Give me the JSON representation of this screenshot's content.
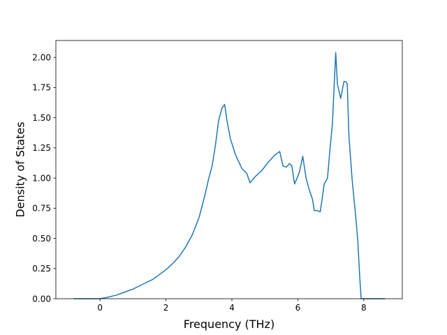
{
  "chart_data": {
    "type": "line",
    "title": "",
    "xlabel": "Frequency (THz)",
    "ylabel": "Density of States",
    "xlim": [
      -1.34,
      9.17
    ],
    "ylim": [
      0.0,
      2.14
    ],
    "xticks": [
      0,
      2,
      4,
      6,
      8
    ],
    "xtick_labels": [
      "0",
      "2",
      "4",
      "6",
      "8"
    ],
    "yticks": [
      0.0,
      0.25,
      0.5,
      0.75,
      1.0,
      1.25,
      1.5,
      1.75,
      2.0
    ],
    "ytick_labels": [
      "0.00",
      "0.25",
      "0.50",
      "0.75",
      "1.00",
      "1.25",
      "1.50",
      "1.75",
      "2.00"
    ],
    "grid": false,
    "line_color": "#1f77b4",
    "series": [
      {
        "x": [
          -0.8,
          -0.3,
          0.0,
          0.2,
          0.5,
          0.8,
          1.0,
          1.3,
          1.6,
          1.8,
          2.0,
          2.2,
          2.4,
          2.6,
          2.8,
          3.0,
          3.1,
          3.2,
          3.3,
          3.4,
          3.5,
          3.6,
          3.7,
          3.78,
          3.85,
          3.95,
          4.1,
          4.3,
          4.45,
          4.55,
          4.7,
          4.9,
          5.1,
          5.3,
          5.45,
          5.55,
          5.65,
          5.75,
          5.82,
          5.9,
          5.98,
          6.05,
          6.15,
          6.25,
          6.35,
          6.45,
          6.5,
          6.6,
          6.68,
          6.75,
          6.8,
          6.9,
          6.98,
          7.05,
          7.1,
          7.15,
          7.2,
          7.3,
          7.4,
          7.45,
          7.5,
          7.55,
          7.65,
          7.75,
          7.82,
          7.87,
          7.92,
          8.1,
          8.4,
          8.65
        ],
        "y": [
          0.0,
          0.0,
          0.0,
          0.01,
          0.03,
          0.06,
          0.08,
          0.12,
          0.16,
          0.2,
          0.24,
          0.29,
          0.35,
          0.43,
          0.53,
          0.67,
          0.77,
          0.88,
          1.0,
          1.1,
          1.27,
          1.48,
          1.58,
          1.61,
          1.48,
          1.33,
          1.2,
          1.08,
          1.04,
          0.96,
          1.01,
          1.06,
          1.13,
          1.19,
          1.22,
          1.1,
          1.09,
          1.12,
          1.1,
          0.95,
          1.0,
          1.05,
          1.18,
          1.0,
          0.9,
          0.82,
          0.73,
          0.73,
          0.72,
          0.85,
          0.95,
          1.0,
          1.25,
          1.45,
          1.75,
          2.04,
          1.78,
          1.66,
          1.8,
          1.8,
          1.78,
          1.35,
          0.98,
          0.7,
          0.48,
          0.22,
          0.0,
          0.0,
          0.0,
          0.0
        ]
      }
    ]
  }
}
